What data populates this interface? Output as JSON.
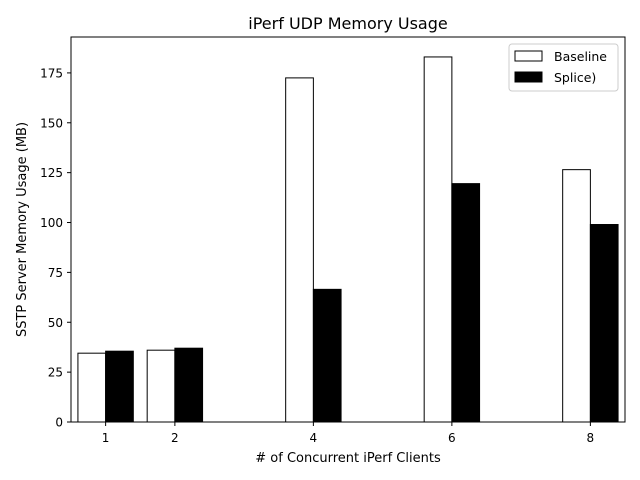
{
  "chart_data": {
    "type": "bar",
    "title": "iPerf UDP Memory Usage",
    "xlabel": "# of Concurrent iPerf Clients",
    "ylabel": "SSTP Server Memory Usage (MB)",
    "categories": [
      "1",
      "2",
      "4",
      "6",
      "8"
    ],
    "series": [
      {
        "name": "Baseline",
        "color": "#ffffff",
        "values": [
          34.5,
          36,
          172.5,
          183,
          126.5
        ]
      },
      {
        "name": "Splice)",
        "color": "#000000",
        "values": [
          35.5,
          37,
          66.5,
          119.5,
          99
        ]
      }
    ],
    "ylim": [
      0,
      193
    ],
    "yticks": [
      0,
      25,
      50,
      75,
      100,
      125,
      150,
      175
    ],
    "grid": false,
    "legend_position": "top-right"
  }
}
